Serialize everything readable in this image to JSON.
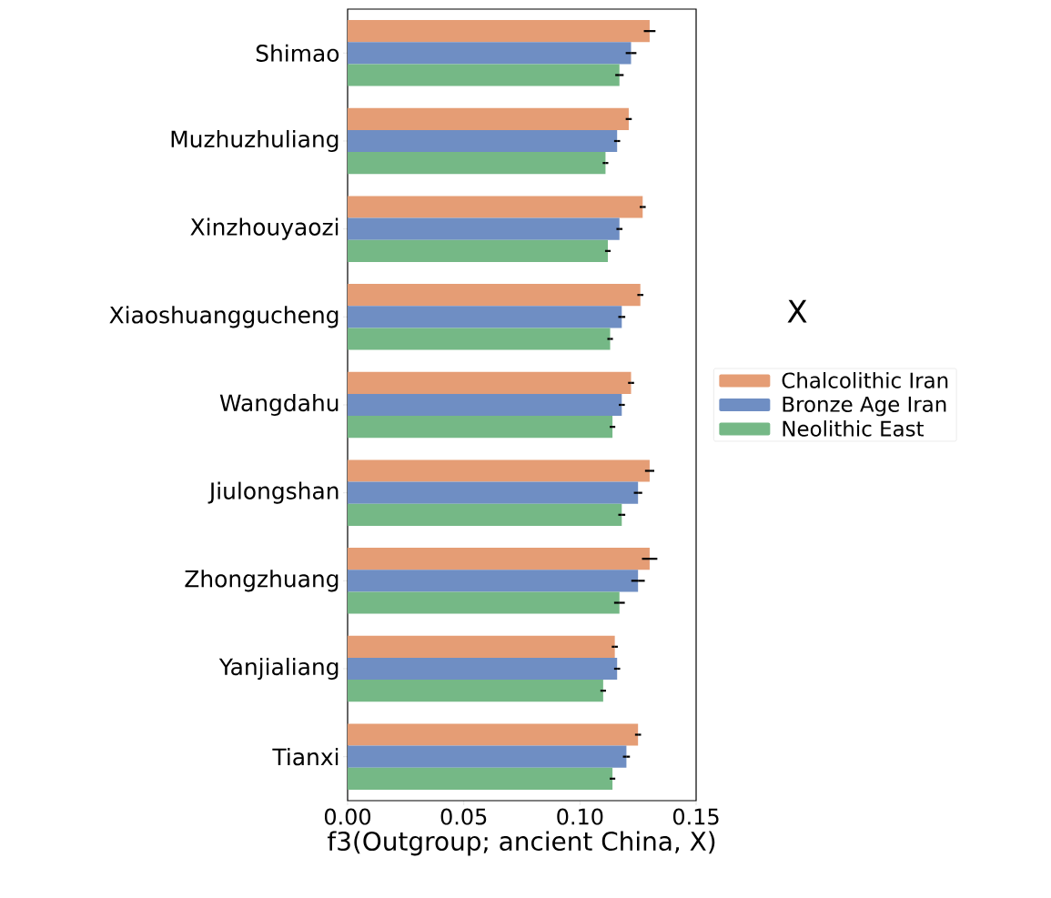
{
  "chart_data": {
    "type": "bar",
    "orientation": "horizontal",
    "xlabel": "f3(Outgroup; ancient China, X)",
    "legend_title": "X",
    "legend": "right",
    "categories": [
      "Shimao",
      "Muzhuzhuliang",
      "Xinzhouyaozi",
      "Xiaoshuanggucheng",
      "Wangdahu",
      "Jiulongshan",
      "Zhongzhuang",
      "Yanjialiang",
      "Tianxi"
    ],
    "xlim": [
      0,
      0.15
    ],
    "xticks": [
      {
        "value": 0,
        "label": "0.00"
      },
      {
        "value": 0.05,
        "label": "0.05"
      },
      {
        "value": 0.1,
        "label": "0.10"
      },
      {
        "value": 0.15,
        "label": "0.15"
      }
    ],
    "series": [
      {
        "name": "Chalcolithic Iran",
        "color": "#e59d75",
        "values": [
          0.13,
          0.121,
          0.127,
          0.126,
          0.122,
          0.13,
          0.13,
          0.115,
          0.125
        ],
        "errors": [
          0.0025,
          0.0013,
          0.0013,
          0.0013,
          0.0013,
          0.002,
          0.0033,
          0.0013,
          0.0013
        ]
      },
      {
        "name": "Bronze Age Iran",
        "color": "#6f8ec3",
        "values": [
          0.122,
          0.116,
          0.117,
          0.118,
          0.118,
          0.125,
          0.125,
          0.116,
          0.12
        ],
        "errors": [
          0.0023,
          0.0013,
          0.0013,
          0.0015,
          0.0013,
          0.0018,
          0.0029,
          0.0013,
          0.0015
        ]
      },
      {
        "name": "Neolithic East",
        "color": "#75b886",
        "values": [
          0.117,
          0.111,
          0.112,
          0.113,
          0.114,
          0.118,
          0.117,
          0.11,
          0.114
        ],
        "errors": [
          0.0018,
          0.0012,
          0.0012,
          0.0012,
          0.0012,
          0.0015,
          0.0023,
          0.0012,
          0.0012
        ]
      }
    ]
  }
}
